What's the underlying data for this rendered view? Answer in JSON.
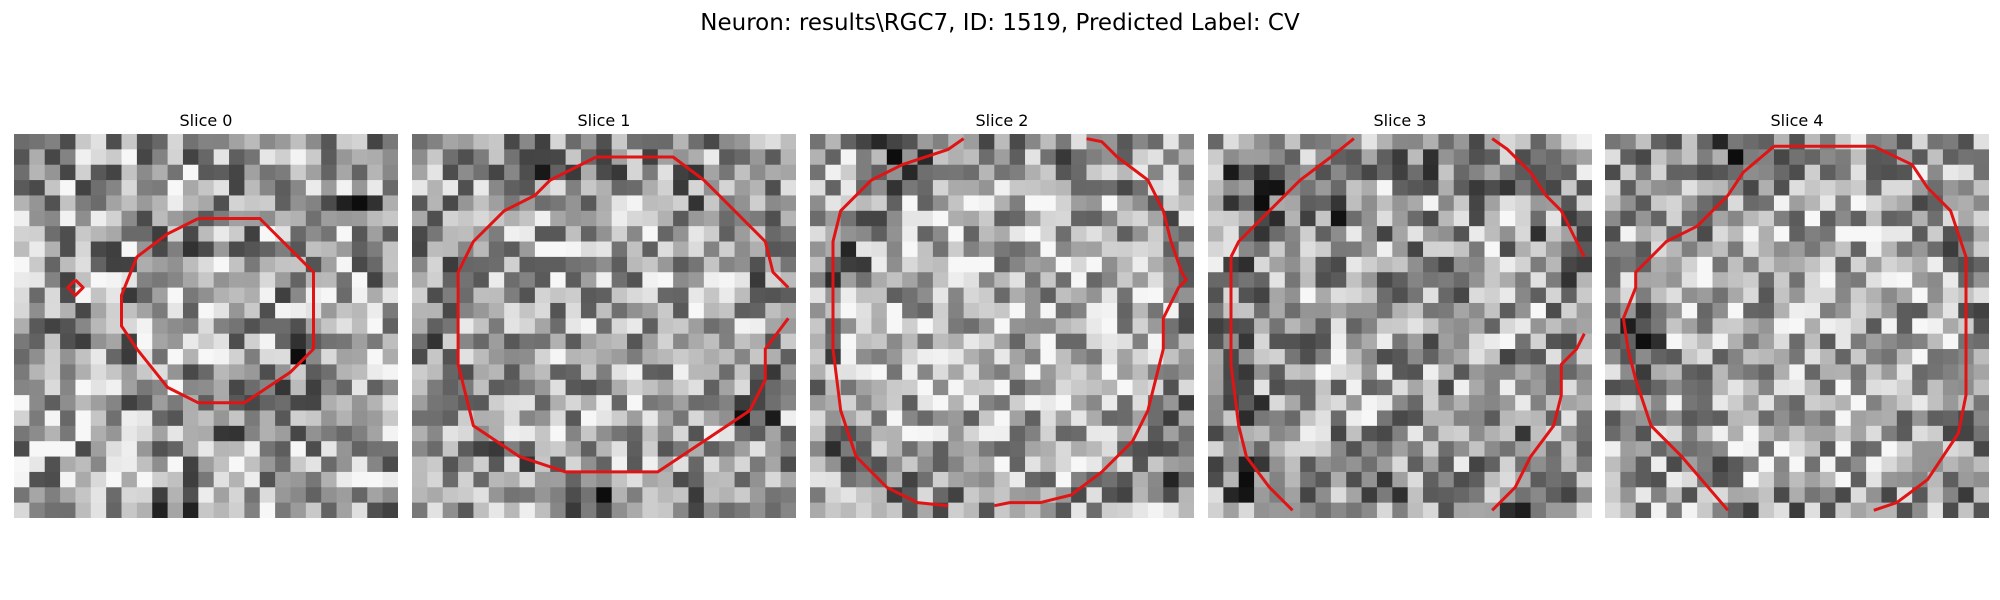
{
  "figure": {
    "title": "Neuron: results\\RGC7, ID: 1519, Predicted Label: CV"
  },
  "slices": [
    {
      "title": "Slice 0"
    },
    {
      "title": "Slice 1"
    },
    {
      "title": "Slice 2"
    },
    {
      "title": "Slice 3"
    },
    {
      "title": "Slice 4"
    }
  ],
  "colors": {
    "contour": "#e01414",
    "background": "#ffffff"
  }
}
